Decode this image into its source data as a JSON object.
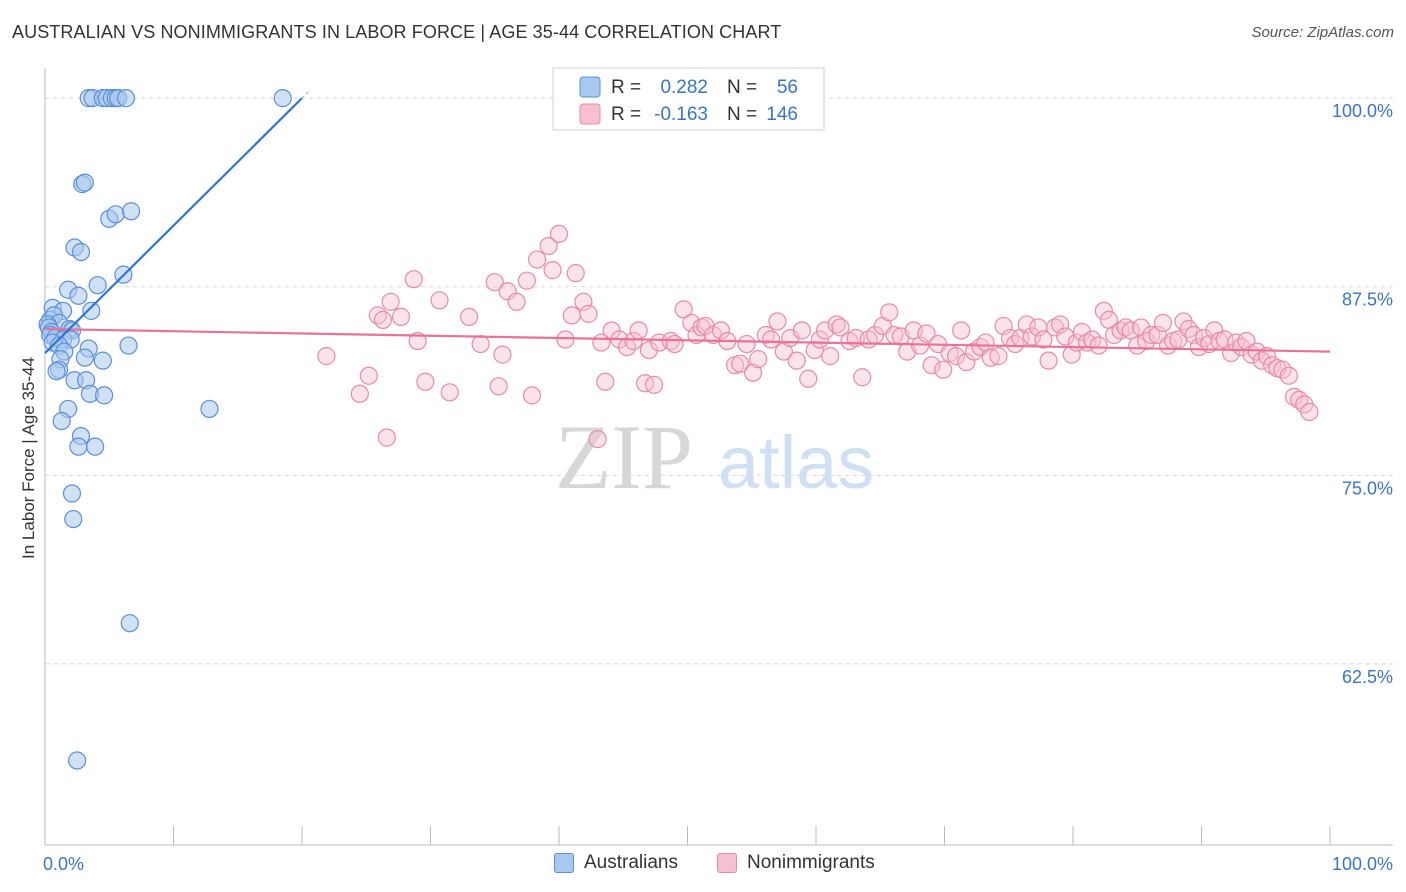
{
  "title": "AUSTRALIAN VS NONIMMIGRANTS IN LABOR FORCE | AGE 35-44 CORRELATION CHART",
  "source": "Source: ZipAtlas.com",
  "watermark": {
    "zip": "ZIP",
    "atlas": "atlas"
  },
  "colors": {
    "blue_fill": "#a9c8ef",
    "blue_stroke": "#5b8fd6",
    "blue_line": "#2d74d4",
    "pink_fill": "#f6c0d0",
    "pink_stroke": "#e98aa8",
    "pink_line": "#e8729a",
    "value_text": "#3a75c4",
    "grid": "#d8d8d8",
    "axis_text": "#3a75c4"
  },
  "legend_top": [
    {
      "series": "Australians",
      "r_label": "R =",
      "r_value": "0.282",
      "n_label": "N =",
      "n_value": "56"
    },
    {
      "series": "Nonimmigrants",
      "r_label": "R =",
      "r_value": "-0.163",
      "n_label": "N =",
      "n_value": "146"
    }
  ],
  "legend_bottom": [
    "Australians",
    "Nonimmigrants"
  ],
  "chart_data": {
    "type": "scatter",
    "title": "AUSTRALIAN VS NONIMMIGRANTS IN LABOR FORCE | AGE 35-44 CORRELATION CHART",
    "xlabel": "",
    "ylabel": "In Labor Force | Age 35-44",
    "xlim": [
      0,
      100
    ],
    "ylim": [
      50.5,
      101.2
    ],
    "x_tick_labels": [
      "0.0%",
      "100.0%"
    ],
    "y_ticks": [
      62.5,
      75.0,
      87.5,
      100.0
    ],
    "y_tick_labels": [
      "62.5%",
      "75.0%",
      "87.5%",
      "100.0%"
    ],
    "grid": true,
    "series": [
      {
        "name": "Australians",
        "r": 0.282,
        "n": 56,
        "trend": {
          "x": [
            0.0,
            20.0
          ],
          "y": [
            83.1,
            100.0
          ]
        },
        "points": [
          [
            3.4,
            100.0
          ],
          [
            3.7,
            100.0
          ],
          [
            4.5,
            100.0
          ],
          [
            4.8,
            100.0
          ],
          [
            5.2,
            100.0
          ],
          [
            5.5,
            100.0
          ],
          [
            5.7,
            100.0
          ],
          [
            6.3,
            100.0
          ],
          [
            18.5,
            100.0
          ],
          [
            2.9,
            94.3
          ],
          [
            3.1,
            94.4
          ],
          [
            5.0,
            92.0
          ],
          [
            5.5,
            92.3
          ],
          [
            6.7,
            92.5
          ],
          [
            2.3,
            90.1
          ],
          [
            2.8,
            89.8
          ],
          [
            6.1,
            88.3
          ],
          [
            1.8,
            87.3
          ],
          [
            2.6,
            86.9
          ],
          [
            4.1,
            87.6
          ],
          [
            0.6,
            86.1
          ],
          [
            1.4,
            85.9
          ],
          [
            0.4,
            85.3
          ],
          [
            0.7,
            85.6
          ],
          [
            1.1,
            85.1
          ],
          [
            3.6,
            85.9
          ],
          [
            0.2,
            85.0
          ],
          [
            0.3,
            84.8
          ],
          [
            0.5,
            84.5
          ],
          [
            1.9,
            84.7
          ],
          [
            2.1,
            84.6
          ],
          [
            0.4,
            84.3
          ],
          [
            0.8,
            84.1
          ],
          [
            1.4,
            84.0
          ],
          [
            2.0,
            84.0
          ],
          [
            0.6,
            83.8
          ],
          [
            1.1,
            83.6
          ],
          [
            3.4,
            83.4
          ],
          [
            6.5,
            83.6
          ],
          [
            1.5,
            83.2
          ],
          [
            1.2,
            82.7
          ],
          [
            3.1,
            82.8
          ],
          [
            4.5,
            82.6
          ],
          [
            1.1,
            82.0
          ],
          [
            0.9,
            81.9
          ],
          [
            2.3,
            81.3
          ],
          [
            3.2,
            81.3
          ],
          [
            3.5,
            80.4
          ],
          [
            4.6,
            80.3
          ],
          [
            12.8,
            79.4
          ],
          [
            1.8,
            79.4
          ],
          [
            1.3,
            78.6
          ],
          [
            2.8,
            77.6
          ],
          [
            2.6,
            76.9
          ],
          [
            3.9,
            76.9
          ],
          [
            2.1,
            73.8
          ],
          [
            2.2,
            72.1
          ],
          [
            6.6,
            65.2
          ],
          [
            2.5,
            56.1
          ]
        ]
      },
      {
        "name": "Nonimmigrants",
        "r": -0.163,
        "n": 146,
        "trend": {
          "x": [
            0.0,
            100.0
          ],
          "y": [
            84.7,
            83.2
          ]
        },
        "points": [
          [
            21.9,
            82.9
          ],
          [
            24.5,
            80.4
          ],
          [
            25.2,
            81.6
          ],
          [
            25.9,
            85.6
          ],
          [
            26.3,
            85.3
          ],
          [
            26.6,
            77.5
          ],
          [
            26.9,
            86.5
          ],
          [
            27.7,
            85.5
          ],
          [
            28.7,
            88.0
          ],
          [
            29.0,
            83.9
          ],
          [
            29.6,
            81.2
          ],
          [
            30.7,
            86.6
          ],
          [
            31.5,
            80.5
          ],
          [
            33.0,
            85.5
          ],
          [
            33.9,
            83.7
          ],
          [
            35.0,
            87.8
          ],
          [
            35.3,
            80.9
          ],
          [
            35.6,
            83.0
          ],
          [
            36.0,
            87.2
          ],
          [
            36.7,
            86.5
          ],
          [
            37.5,
            87.9
          ],
          [
            37.9,
            80.3
          ],
          [
            38.3,
            89.3
          ],
          [
            39.2,
            90.2
          ],
          [
            39.5,
            88.6
          ],
          [
            40.0,
            91.0
          ],
          [
            40.5,
            84.0
          ],
          [
            41.0,
            85.6
          ],
          [
            41.3,
            88.4
          ],
          [
            41.9,
            86.5
          ],
          [
            42.3,
            85.7
          ],
          [
            43.0,
            77.4
          ],
          [
            43.3,
            83.8
          ],
          [
            43.6,
            81.2
          ],
          [
            44.1,
            84.6
          ],
          [
            44.7,
            84.0
          ],
          [
            45.3,
            83.5
          ],
          [
            45.8,
            83.9
          ],
          [
            46.2,
            84.6
          ],
          [
            46.7,
            81.1
          ],
          [
            47.0,
            83.3
          ],
          [
            47.4,
            81.0
          ],
          [
            47.8,
            83.8
          ],
          [
            48.7,
            83.9
          ],
          [
            49.0,
            83.7
          ],
          [
            49.7,
            86.0
          ],
          [
            50.3,
            85.1
          ],
          [
            50.7,
            84.3
          ],
          [
            51.1,
            84.8
          ],
          [
            51.4,
            84.9
          ],
          [
            52.0,
            84.3
          ],
          [
            52.6,
            84.6
          ],
          [
            53.1,
            83.9
          ],
          [
            53.7,
            82.3
          ],
          [
            54.1,
            82.4
          ],
          [
            54.6,
            83.7
          ],
          [
            55.1,
            81.8
          ],
          [
            55.5,
            82.7
          ],
          [
            56.1,
            84.3
          ],
          [
            56.5,
            84.0
          ],
          [
            57.0,
            85.2
          ],
          [
            57.5,
            83.2
          ],
          [
            58.0,
            84.1
          ],
          [
            58.5,
            82.6
          ],
          [
            58.9,
            84.6
          ],
          [
            59.4,
            81.4
          ],
          [
            59.9,
            83.3
          ],
          [
            60.3,
            84.0
          ],
          [
            60.7,
            84.6
          ],
          [
            61.1,
            82.9
          ],
          [
            61.6,
            85.0
          ],
          [
            61.9,
            84.8
          ],
          [
            62.6,
            83.9
          ],
          [
            63.1,
            84.1
          ],
          [
            63.6,
            81.5
          ],
          [
            64.1,
            84.0
          ],
          [
            64.6,
            84.3
          ],
          [
            65.2,
            84.9
          ],
          [
            65.7,
            85.8
          ],
          [
            66.1,
            84.3
          ],
          [
            66.6,
            84.2
          ],
          [
            67.1,
            83.2
          ],
          [
            67.6,
            84.6
          ],
          [
            68.1,
            83.6
          ],
          [
            68.6,
            84.4
          ],
          [
            69.0,
            82.3
          ],
          [
            69.5,
            83.7
          ],
          [
            69.9,
            82.0
          ],
          [
            70.4,
            83.1
          ],
          [
            70.9,
            82.9
          ],
          [
            71.3,
            84.6
          ],
          [
            71.7,
            82.5
          ],
          [
            72.3,
            83.2
          ],
          [
            72.8,
            83.5
          ],
          [
            73.2,
            83.8
          ],
          [
            73.6,
            82.8
          ],
          [
            74.2,
            82.9
          ],
          [
            74.6,
            84.9
          ],
          [
            75.1,
            84.1
          ],
          [
            75.5,
            83.7
          ],
          [
            75.9,
            84.1
          ],
          [
            76.4,
            85.0
          ],
          [
            76.8,
            84.2
          ],
          [
            77.3,
            84.8
          ],
          [
            77.7,
            84.0
          ],
          [
            78.1,
            82.6
          ],
          [
            78.6,
            84.8
          ],
          [
            79.0,
            85.0
          ],
          [
            79.4,
            84.2
          ],
          [
            79.9,
            83.0
          ],
          [
            80.3,
            83.8
          ],
          [
            80.7,
            84.5
          ],
          [
            81.1,
            83.8
          ],
          [
            81.5,
            84.0
          ],
          [
            82.0,
            83.6
          ],
          [
            82.4,
            85.9
          ],
          [
            82.8,
            85.3
          ],
          [
            83.2,
            84.3
          ],
          [
            83.7,
            84.6
          ],
          [
            84.1,
            84.8
          ],
          [
            84.5,
            84.6
          ],
          [
            85.0,
            83.6
          ],
          [
            85.3,
            84.8
          ],
          [
            85.7,
            83.9
          ],
          [
            86.1,
            84.3
          ],
          [
            86.6,
            84.3
          ],
          [
            87.0,
            85.1
          ],
          [
            87.4,
            83.6
          ],
          [
            87.8,
            83.9
          ],
          [
            88.2,
            84.0
          ],
          [
            88.6,
            85.2
          ],
          [
            89.0,
            84.7
          ],
          [
            89.4,
            84.3
          ],
          [
            89.8,
            83.5
          ],
          [
            90.2,
            84.1
          ],
          [
            90.6,
            83.7
          ],
          [
            91.0,
            84.6
          ],
          [
            91.4,
            83.9
          ],
          [
            91.8,
            84.0
          ],
          [
            92.3,
            83.1
          ],
          [
            92.7,
            83.8
          ],
          [
            93.1,
            83.5
          ],
          [
            93.5,
            83.9
          ],
          [
            93.9,
            83.0
          ],
          [
            94.3,
            83.2
          ],
          [
            94.7,
            82.6
          ],
          [
            95.1,
            82.9
          ],
          [
            95.5,
            82.3
          ],
          [
            95.9,
            82.1
          ],
          [
            96.3,
            82.0
          ],
          [
            96.8,
            81.6
          ],
          [
            97.2,
            80.2
          ],
          [
            97.6,
            80.0
          ],
          [
            98.0,
            79.7
          ],
          [
            98.4,
            79.2
          ]
        ]
      }
    ]
  }
}
